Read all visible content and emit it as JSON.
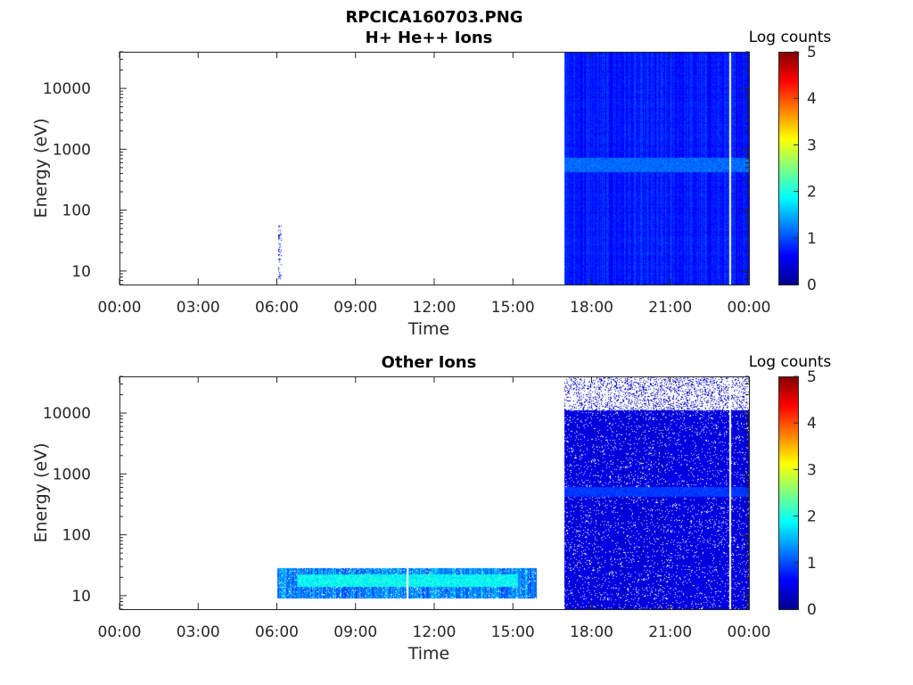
{
  "figure": {
    "title": "RPCICA160703.PNG"
  },
  "chart_data": [
    {
      "type": "heatmap",
      "title": "H+ He++ Ions",
      "xlabel": "Time",
      "ylabel": "Energy (eV)",
      "yscale": "log",
      "xlim": [
        0,
        24
      ],
      "ylim": [
        6,
        40000
      ],
      "x_ticks": [
        0,
        3,
        6,
        9,
        12,
        15,
        18,
        21,
        24
      ],
      "x_tick_labels": [
        "00:00",
        "03:00",
        "06:00",
        "09:00",
        "12:00",
        "15:00",
        "18:00",
        "21:00",
        "00:00"
      ],
      "y_ticks": [
        10,
        100,
        1000,
        10000
      ],
      "y_tick_labels": [
        "10",
        "100",
        "1000",
        "10000"
      ],
      "colorbar": {
        "label": "Log counts",
        "range": [
          0,
          5
        ],
        "ticks": [
          0,
          1,
          2,
          3,
          4,
          5
        ],
        "tick_labels": [
          "0",
          "1",
          "2",
          "3",
          "4",
          "5"
        ],
        "colormap": "jet"
      },
      "regions": [
        {
          "t_start": 6.05,
          "t_end": 6.2,
          "e_min": 7,
          "e_max": 55,
          "log_counts": 0.6,
          "texture": "sparse"
        },
        {
          "t_start": 16.95,
          "t_end": 24,
          "e_min": 6,
          "e_max": 40000,
          "log_counts": 0.75,
          "texture": "noisy"
        },
        {
          "t_start": 16.95,
          "t_end": 24,
          "e_min": 420,
          "e_max": 720,
          "log_counts": 1.15,
          "texture": "band"
        }
      ],
      "data_gaps": [
        {
          "t_start": 23.25,
          "t_end": 23.33
        }
      ]
    },
    {
      "type": "heatmap",
      "title": "Other Ions",
      "xlabel": "Time",
      "ylabel": "Energy (eV)",
      "yscale": "log",
      "xlim": [
        0,
        24
      ],
      "ylim": [
        6,
        40000
      ],
      "x_ticks": [
        0,
        3,
        6,
        9,
        12,
        15,
        18,
        21,
        24
      ],
      "x_tick_labels": [
        "00:00",
        "03:00",
        "06:00",
        "09:00",
        "12:00",
        "15:00",
        "18:00",
        "21:00",
        "00:00"
      ],
      "y_ticks": [
        10,
        100,
        1000,
        10000
      ],
      "y_tick_labels": [
        "10",
        "100",
        "1000",
        "10000"
      ],
      "colorbar": {
        "label": "Log counts",
        "range": [
          0,
          5
        ],
        "ticks": [
          0,
          1,
          2,
          3,
          4,
          5
        ],
        "tick_labels": [
          "0",
          "1",
          "2",
          "3",
          "4",
          "5"
        ],
        "colormap": "jet"
      },
      "regions": [
        {
          "t_start": 6.0,
          "t_end": 15.9,
          "e_min": 9,
          "e_max": 28,
          "log_counts": 1.3,
          "texture": "noisy"
        },
        {
          "t_start": 6.8,
          "t_end": 15.2,
          "e_min": 14,
          "e_max": 22,
          "log_counts": 1.9,
          "texture": "band"
        },
        {
          "t_start": 16.95,
          "t_end": 24,
          "e_min": 6,
          "e_max": 11000,
          "log_counts": 0.45,
          "texture": "noisy"
        },
        {
          "t_start": 16.95,
          "t_end": 24,
          "e_min": 11000,
          "e_max": 40000,
          "log_counts": 0.3,
          "texture": "sparse"
        },
        {
          "t_start": 16.95,
          "t_end": 24,
          "e_min": 420,
          "e_max": 600,
          "log_counts": 0.9,
          "texture": "band"
        }
      ],
      "data_gaps": [
        {
          "t_start": 10.95,
          "t_end": 11.02
        },
        {
          "t_start": 23.25,
          "t_end": 23.33
        }
      ]
    }
  ]
}
